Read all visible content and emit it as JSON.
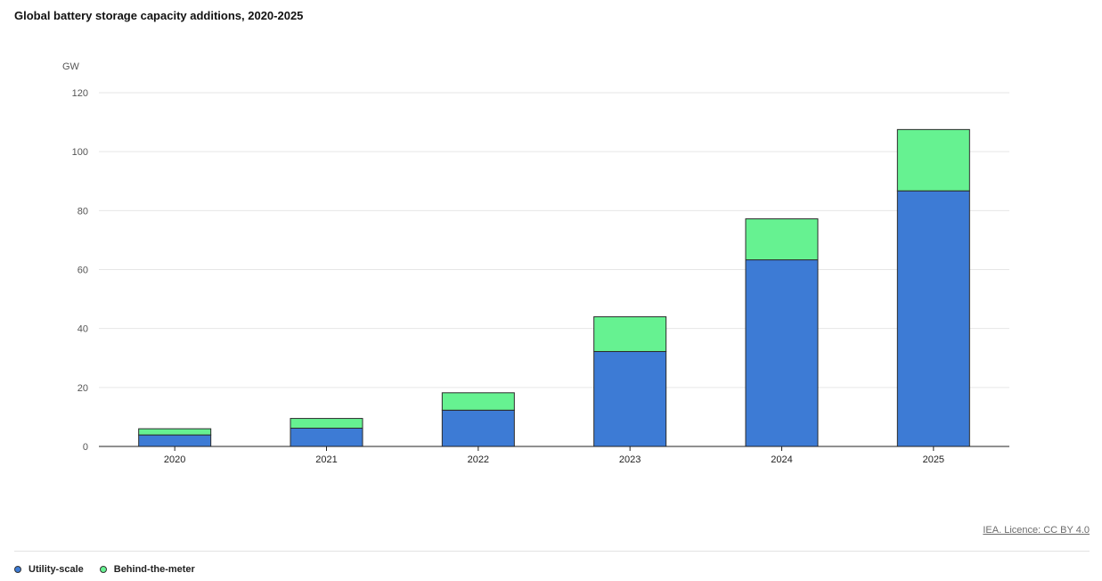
{
  "chart_data": {
    "type": "bar",
    "stacked": true,
    "title": "Global battery storage capacity additions, 2020-2025",
    "ylabel": "GW",
    "xlabel": "",
    "ylim": [
      0,
      120
    ],
    "yticks": [
      "0",
      "20",
      "40",
      "60",
      "80",
      "100",
      "120"
    ],
    "grid": true,
    "legend_position": "bottom-left",
    "categories": [
      "2020",
      "2021",
      "2022",
      "2023",
      "2024",
      "2025"
    ],
    "series": [
      {
        "name": "Utility-scale",
        "color": "#3d7bd5",
        "values": [
          3.9,
          6.2,
          12.3,
          32.2,
          63.3,
          86.7
        ]
      },
      {
        "name": "Behind-the-meter",
        "color": "#66f291",
        "values": [
          2.1,
          3.3,
          5.9,
          11.8,
          13.9,
          20.8
        ]
      }
    ]
  },
  "source": {
    "label": "IEA. Licence: CC BY 4.0"
  }
}
